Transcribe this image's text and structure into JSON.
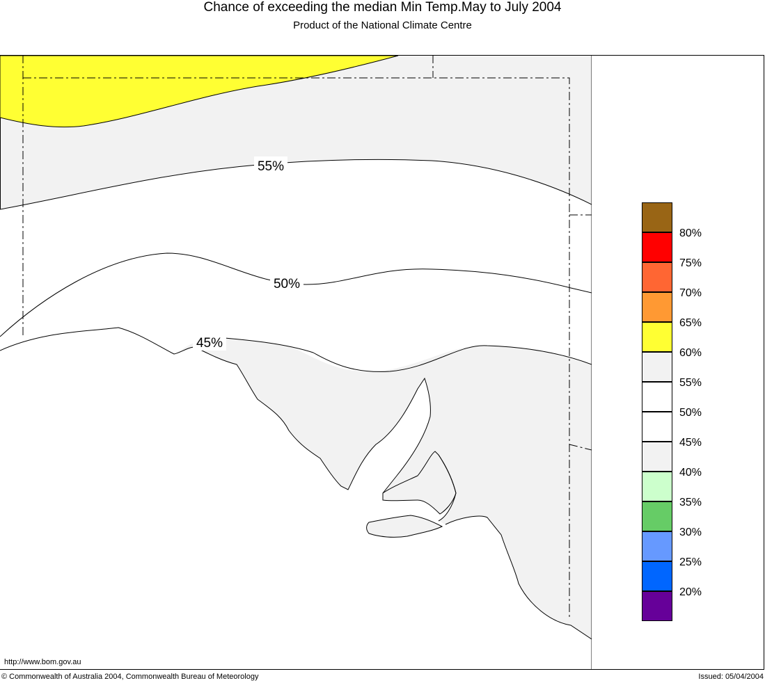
{
  "title": "Chance of exceeding the median Min Temp.May to July 2004",
  "subtitle": "Product of the National Climate Centre",
  "contour_labels": [
    "55%",
    "50%",
    "45%"
  ],
  "legend": {
    "swatches": [
      {
        "color": "#996515"
      },
      {
        "color": "#ff0000"
      },
      {
        "color": "#ff6633"
      },
      {
        "color": "#ff9933"
      },
      {
        "color": "#ffff33"
      },
      {
        "color": "#f2f2f2"
      },
      {
        "color": "#ffffff"
      },
      {
        "color": "#ffffff"
      },
      {
        "color": "#f2f2f2"
      },
      {
        "color": "#ccffcc"
      },
      {
        "color": "#66cc66"
      },
      {
        "color": "#6699ff"
      },
      {
        "color": "#0066ff"
      },
      {
        "color": "#660099"
      }
    ],
    "labels": [
      "80%",
      "75%",
      "70%",
      "65%",
      "60%",
      "55%",
      "50%",
      "45%",
      "40%",
      "35%",
      "30%",
      "25%",
      "20%"
    ]
  },
  "footer": {
    "url": "http://www.bom.gov.au",
    "copyright": "© Commonwealth of Australia 2004, Commonwealth Bureau of Meteorology",
    "issued": "Issued: 05/04/2004"
  }
}
